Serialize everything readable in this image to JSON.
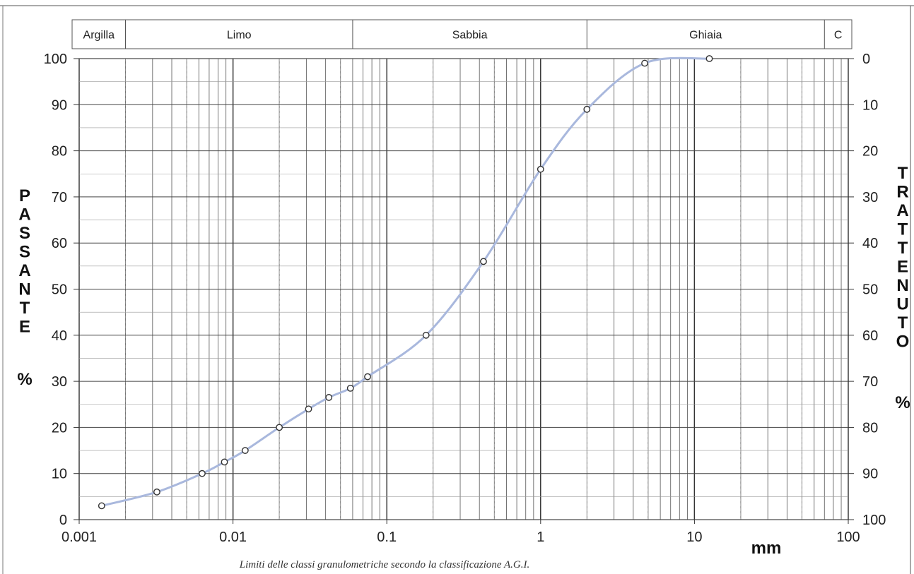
{
  "chart_data": {
    "type": "line",
    "x_scale": "log",
    "xlim": [
      0.001,
      100
    ],
    "ylim": [
      0,
      100
    ],
    "x_tick_labels": [
      "0.001",
      "0.01",
      "0.1",
      "1",
      "10",
      "100"
    ],
    "y_tick_labels_left": [
      "100",
      "90",
      "80",
      "70",
      "60",
      "50",
      "40",
      "30",
      "20",
      "10",
      "0"
    ],
    "y_tick_labels_right": [
      "0",
      "10",
      "20",
      "30",
      "40",
      "50",
      "60",
      "70",
      "80",
      "90",
      "100"
    ],
    "left_axis_label": "PASSANTE",
    "left_axis_unit": "%",
    "right_axis_label": "TRATTENUTO",
    "right_axis_unit": "%",
    "x_unit": "mm",
    "footnote": "Limiti delle classi granulometriche secondo la classificazione A.G.I.",
    "grid": true,
    "classes": [
      {
        "label": "Argilla",
        "from": 0.001,
        "to": 0.002
      },
      {
        "label": "Limo",
        "from": 0.002,
        "to": 0.06
      },
      {
        "label": "Sabbia",
        "from": 0.06,
        "to": 2
      },
      {
        "label": "Ghiaia",
        "from": 2,
        "to": 70
      },
      {
        "label": "C",
        "from": 70,
        "to": 100
      }
    ],
    "series": [
      {
        "x": [
          0.0014,
          0.0032,
          0.0063,
          0.0088,
          0.012,
          0.02,
          0.031,
          0.042,
          0.058,
          0.075,
          0.18,
          0.425,
          1,
          2,
          4.75,
          12.5
        ],
        "y": [
          3,
          6,
          10,
          12.5,
          15,
          20,
          24,
          26.5,
          28.5,
          31,
          40,
          56,
          76,
          89,
          99,
          100
        ]
      }
    ],
    "line_color": "#a9b8dd",
    "marker_stroke": "#333333"
  }
}
